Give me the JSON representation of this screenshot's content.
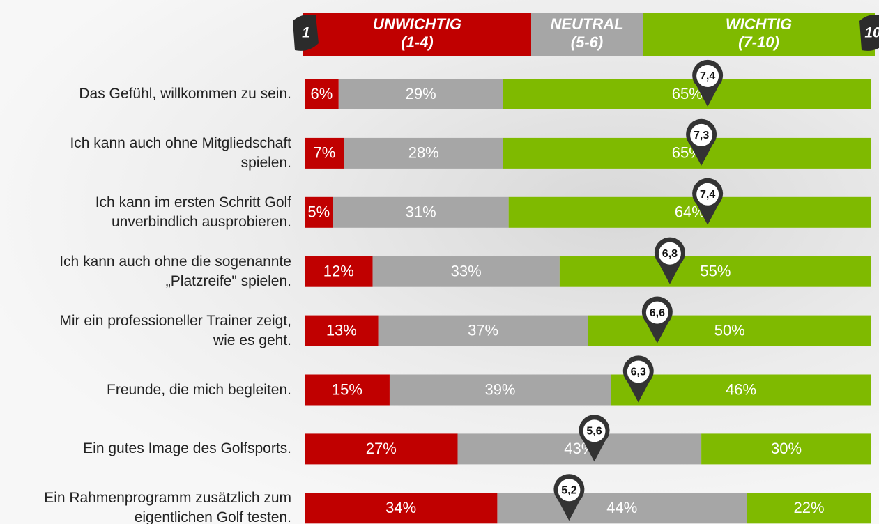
{
  "chart_data": {
    "type": "bar",
    "orientation": "horizontal",
    "stacked": true,
    "categories": [
      "Das Gefühl, willkommen zu sein.",
      "Ich kann auch ohne Mitgliedschaft\nspielen.",
      "Ich kann im ersten Schritt Golf\nunverbindlich ausprobieren.",
      "Ich kann auch ohne die sogenannte\n„Platzreife\" spielen.",
      "Mir ein professioneller Trainer zeigt,\nwie es geht.",
      "Freunde, die mich begleiten.",
      "Ein gutes Image des Golfsports.",
      "Ein Rahmenprogramm zusätzlich zum\neigentlichen Golf testen."
    ],
    "series": [
      {
        "name": "UNWICHTIG\n(1-4)",
        "color": "#c00000",
        "values": [
          6,
          7,
          5,
          12,
          13,
          15,
          27,
          34
        ],
        "value_labels": [
          "6%",
          "7%",
          "5%",
          "12%",
          "13%",
          "15%",
          "27%",
          "34%"
        ]
      },
      {
        "name": "NEUTRAL\n(5-6)",
        "color": "#a6a6a6",
        "values": [
          29,
          28,
          31,
          33,
          37,
          39,
          43,
          44
        ],
        "value_labels": [
          "29%",
          "28%",
          "31%",
          "33%",
          "37%",
          "39%",
          "43%",
          "44%"
        ]
      },
      {
        "name": "WICHTIG\n(7-10)",
        "color": "#7fba00",
        "values": [
          65,
          65,
          64,
          55,
          50,
          46,
          30,
          22
        ],
        "value_labels": [
          "65%",
          "65%",
          "64%",
          "55%",
          "50%",
          "46%",
          "30%",
          "22%"
        ]
      }
    ],
    "means": [
      7.4,
      7.3,
      7.4,
      6.8,
      6.6,
      6.3,
      5.6,
      5.2
    ],
    "mean_labels": [
      "7,4",
      "7,3",
      "7,4",
      "6,8",
      "6,6",
      "6,3",
      "5,6",
      "5,2"
    ],
    "mean_scale": {
      "lim": [
        1,
        10
      ],
      "ticks": [
        1,
        10
      ]
    }
  }
}
